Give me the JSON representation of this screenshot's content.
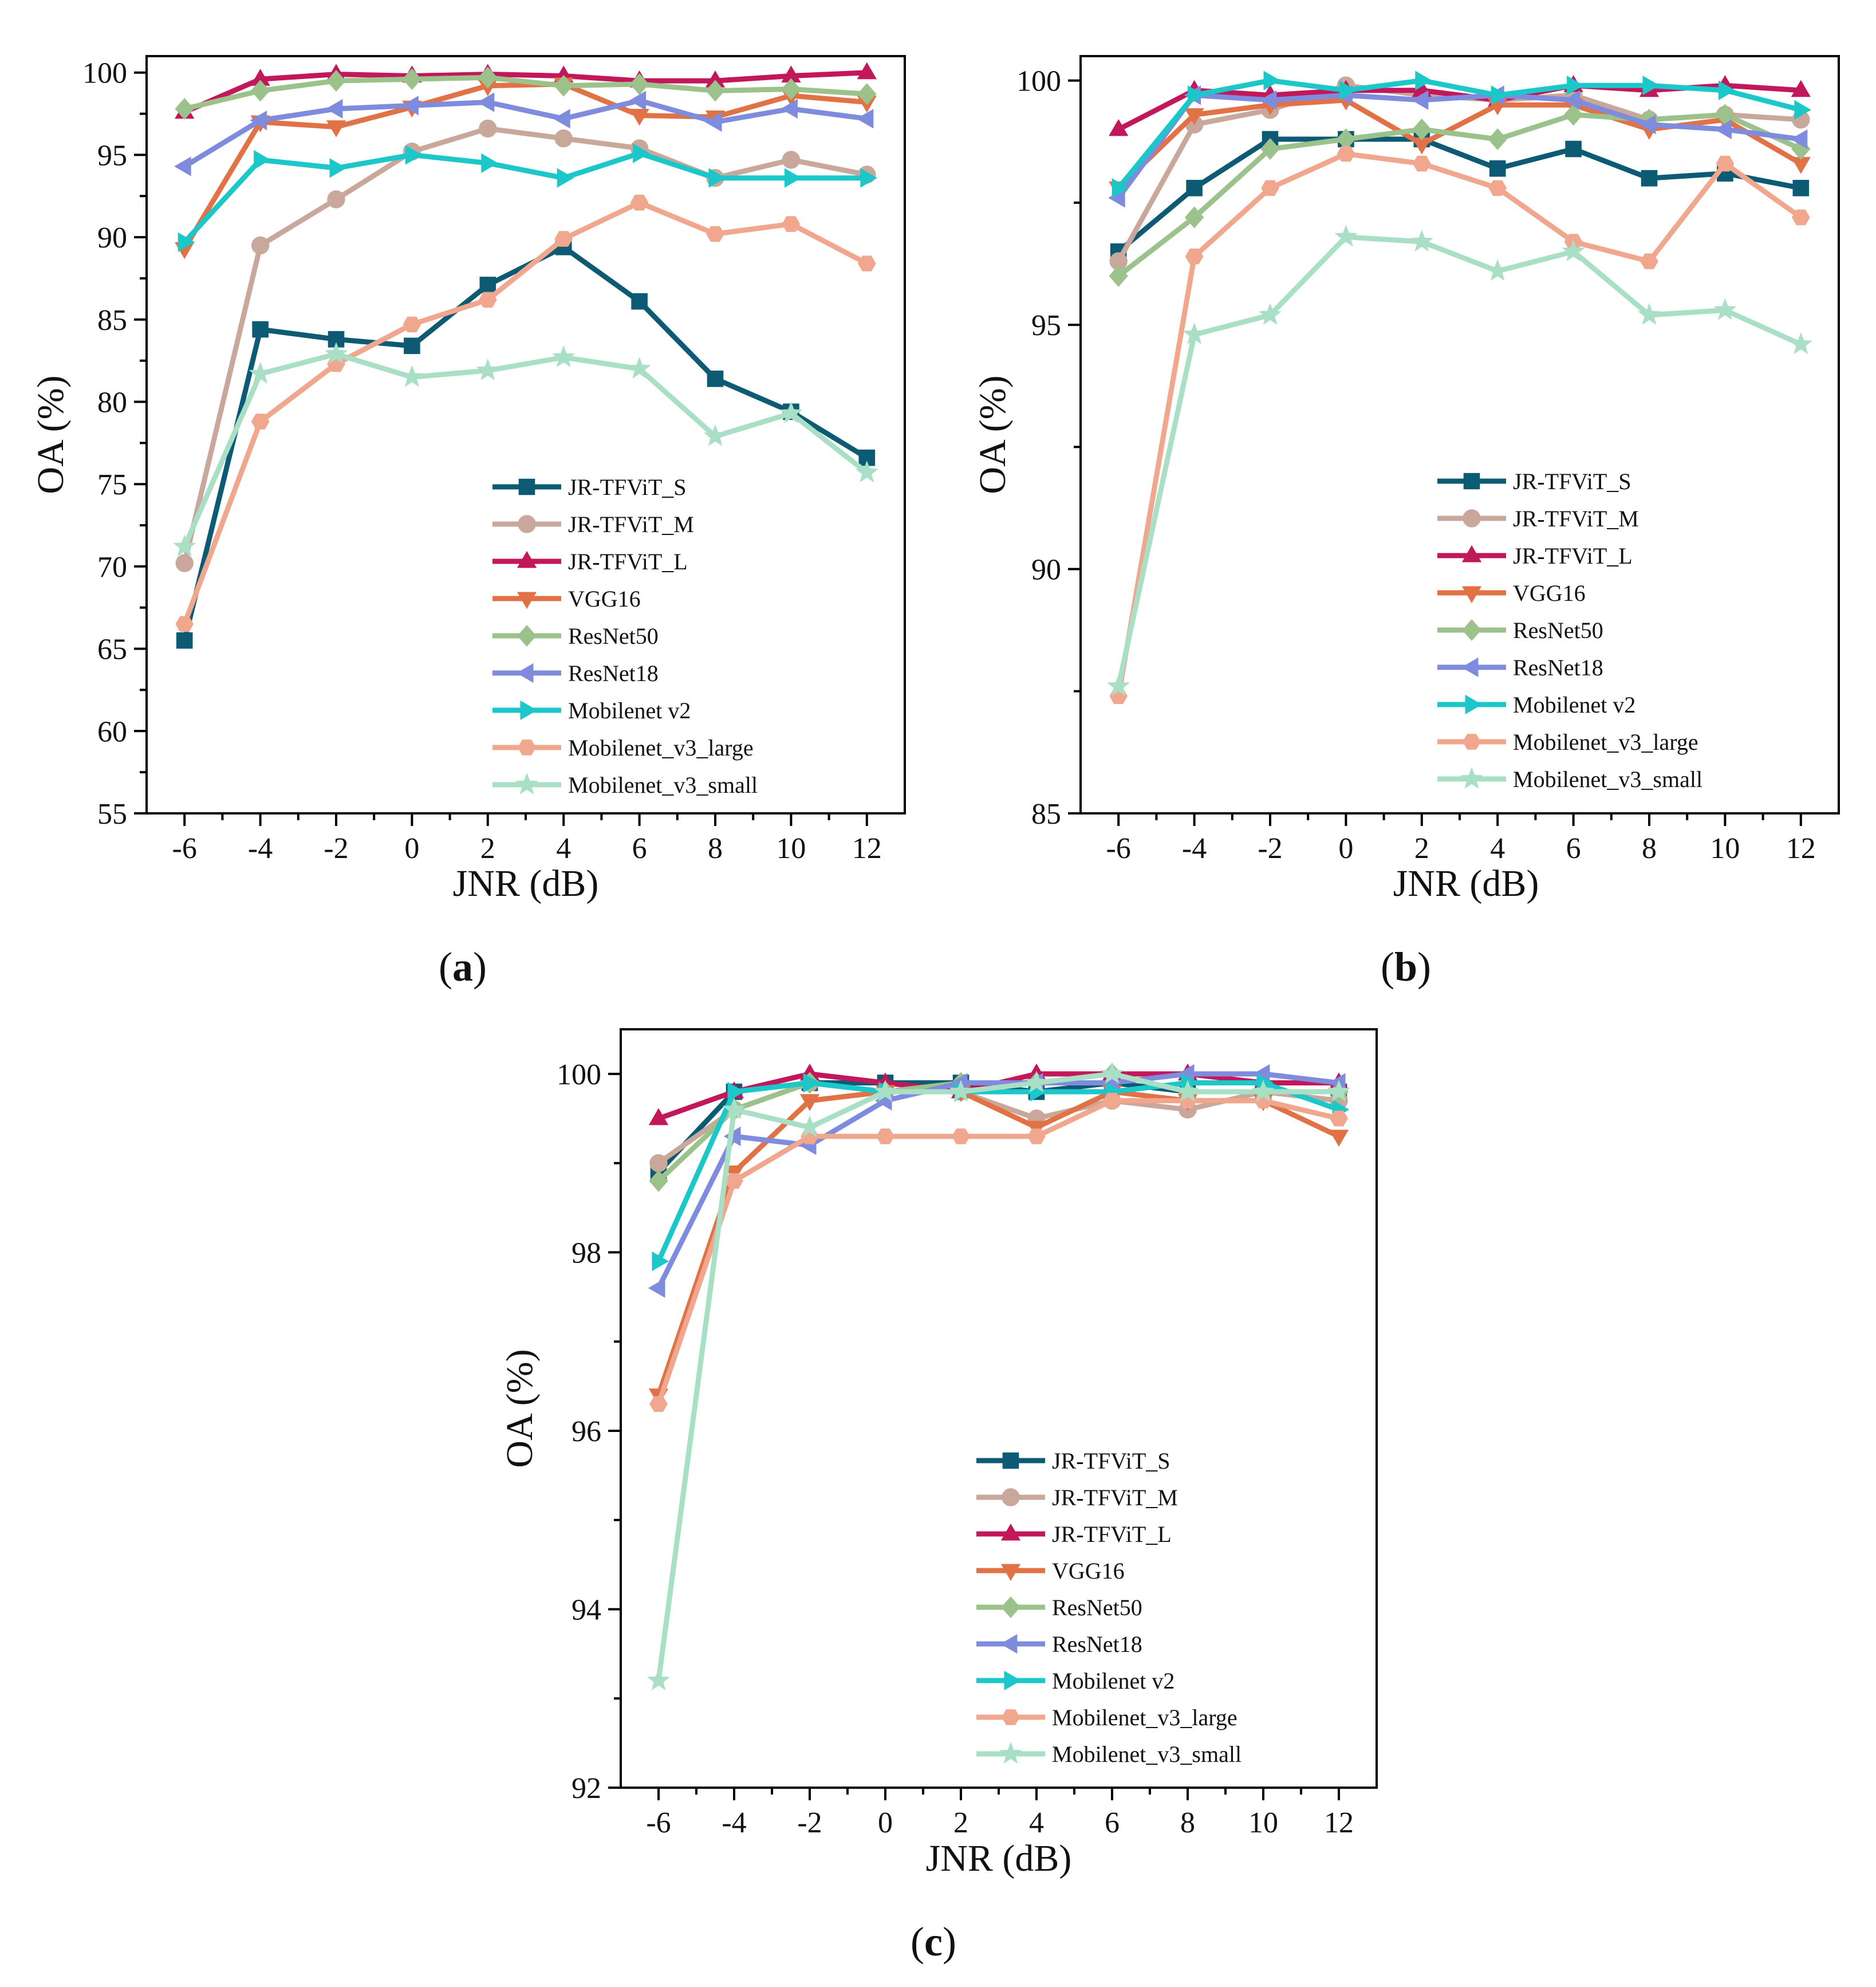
{
  "figure_colors": {
    "JR-TFViT_S": "#0d5a74",
    "JR-TFViT_M": "#c9a89b",
    "JR-TFViT_L": "#c2185b",
    "VGG16": "#e07246",
    "ResNet50": "#9cc28c",
    "ResNet18": "#7f8cde",
    "Mobilenet v2": "#1cc7c9",
    "Mobilenet_v3_large": "#f0a78d",
    "Mobilenet_v3_small": "#a8dfc5"
  },
  "chart_data": [
    {
      "id": "a",
      "type": "line",
      "caption_letter": "a",
      "xlabel": "JNR (dB)",
      "ylabel": "OA (%)",
      "x": [
        -6,
        -4,
        -2,
        0,
        2,
        4,
        6,
        8,
        10,
        12
      ],
      "x_tick_labels": [
        "-6",
        "-4",
        "-2",
        "0",
        "2",
        "4",
        "6",
        "8",
        "10",
        "12"
      ],
      "ylim": [
        55,
        101
      ],
      "y_ticks": [
        55,
        60,
        65,
        70,
        75,
        80,
        85,
        90,
        95,
        100
      ],
      "y_tick_labels": [
        "55",
        "60",
        "65",
        "70",
        "75",
        "80",
        "85",
        "90",
        "95",
        "100"
      ],
      "legend_position": "bottom-right",
      "series": [
        {
          "name": "JR-TFViT_S",
          "marker": "square",
          "values": [
            65.5,
            84.4,
            83.8,
            83.4,
            87.1,
            89.4,
            86.1,
            81.4,
            79.4,
            76.6
          ]
        },
        {
          "name": "JR-TFViT_M",
          "marker": "circle",
          "values": [
            70.2,
            89.5,
            92.3,
            95.2,
            96.6,
            96.0,
            95.4,
            93.6,
            94.7,
            93.8
          ]
        },
        {
          "name": "JR-TFViT_L",
          "marker": "triangle-up",
          "values": [
            97.6,
            99.6,
            99.9,
            99.8,
            99.9,
            99.8,
            99.5,
            99.5,
            99.8,
            100.0
          ]
        },
        {
          "name": "VGG16",
          "marker": "triangle-down",
          "values": [
            89.3,
            97.0,
            96.7,
            97.9,
            99.2,
            99.3,
            97.4,
            97.3,
            98.6,
            98.2
          ]
        },
        {
          "name": "ResNet50",
          "marker": "diamond",
          "values": [
            97.8,
            98.9,
            99.5,
            99.6,
            99.7,
            99.2,
            99.3,
            98.9,
            99.0,
            98.7
          ]
        },
        {
          "name": "ResNet18",
          "marker": "triangle-left",
          "values": [
            94.3,
            97.1,
            97.8,
            98.0,
            98.2,
            97.2,
            98.3,
            97.0,
            97.8,
            97.2
          ]
        },
        {
          "name": "Mobilenet v2",
          "marker": "triangle-right",
          "values": [
            89.7,
            94.7,
            94.2,
            95.0,
            94.5,
            93.6,
            95.1,
            93.6,
            93.6,
            93.6
          ]
        },
        {
          "name": "Mobilenet_v3_large",
          "marker": "hexagon",
          "values": [
            66.5,
            78.8,
            82.3,
            84.7,
            86.2,
            89.9,
            92.1,
            90.2,
            90.8,
            88.4
          ]
        },
        {
          "name": "Mobilenet_v3_small",
          "marker": "star",
          "values": [
            71.2,
            81.7,
            82.9,
            81.5,
            81.9,
            82.7,
            82.0,
            77.9,
            79.3,
            75.7
          ]
        }
      ]
    },
    {
      "id": "b",
      "type": "line",
      "caption_letter": "b",
      "xlabel": "JNR (dB)",
      "ylabel": "OA (%)",
      "x": [
        -6,
        -4,
        -2,
        0,
        2,
        4,
        6,
        8,
        10,
        12
      ],
      "x_tick_labels": [
        "-6",
        "-4",
        "-2",
        "0",
        "2",
        "4",
        "6",
        "8",
        "10",
        "12"
      ],
      "ylim": [
        85,
        100.5
      ],
      "y_ticks": [
        85,
        90,
        95,
        100
      ],
      "y_tick_labels": [
        "85",
        "90",
        "95",
        "100"
      ],
      "legend_position": "bottom-right",
      "series": [
        {
          "name": "JR-TFViT_S",
          "marker": "square",
          "values": [
            96.5,
            97.8,
            98.8,
            98.8,
            98.8,
            98.2,
            98.6,
            98.0,
            98.1,
            97.8
          ]
        },
        {
          "name": "JR-TFViT_M",
          "marker": "circle",
          "values": [
            96.3,
            99.1,
            99.4,
            99.9,
            99.7,
            99.6,
            99.7,
            99.2,
            99.3,
            99.2
          ]
        },
        {
          "name": "JR-TFViT_L",
          "marker": "triangle-up",
          "values": [
            99.0,
            99.8,
            99.7,
            99.8,
            99.8,
            99.6,
            99.9,
            99.8,
            99.9,
            99.8
          ]
        },
        {
          "name": "VGG16",
          "marker": "triangle-down",
          "values": [
            97.8,
            99.3,
            99.5,
            99.6,
            98.7,
            99.5,
            99.5,
            99.0,
            99.2,
            98.3
          ]
        },
        {
          "name": "ResNet50",
          "marker": "diamond",
          "values": [
            96.0,
            97.2,
            98.6,
            98.8,
            99.0,
            98.8,
            99.3,
            99.2,
            99.3,
            98.6
          ]
        },
        {
          "name": "ResNet18",
          "marker": "triangle-left",
          "values": [
            97.6,
            99.7,
            99.6,
            99.7,
            99.6,
            99.7,
            99.6,
            99.1,
            99.0,
            98.8
          ]
        },
        {
          "name": "Mobilenet v2",
          "marker": "triangle-right",
          "values": [
            97.8,
            99.7,
            100.0,
            99.8,
            100.0,
            99.7,
            99.9,
            99.9,
            99.8,
            99.4
          ]
        },
        {
          "name": "Mobilenet_v3_large",
          "marker": "hexagon",
          "values": [
            87.4,
            96.4,
            97.8,
            98.5,
            98.3,
            97.8,
            96.7,
            96.3,
            98.3,
            97.2
          ]
        },
        {
          "name": "Mobilenet_v3_small",
          "marker": "star",
          "values": [
            87.6,
            94.8,
            95.2,
            96.8,
            96.7,
            96.1,
            96.5,
            95.2,
            95.3,
            94.6
          ]
        }
      ]
    },
    {
      "id": "c",
      "type": "line",
      "caption_letter": "c",
      "xlabel": "JNR (dB)",
      "ylabel": "OA (%)",
      "x": [
        -6,
        -4,
        -2,
        0,
        2,
        4,
        6,
        8,
        10,
        12
      ],
      "x_tick_labels": [
        "-6",
        "-4",
        "-2",
        "0",
        "2",
        "4",
        "6",
        "8",
        "10",
        "12"
      ],
      "ylim": [
        92,
        100.5
      ],
      "y_ticks": [
        92,
        94,
        96,
        98,
        100
      ],
      "y_tick_labels": [
        "92",
        "94",
        "96",
        "98",
        "100"
      ],
      "legend_position": "bottom-right",
      "series": [
        {
          "name": "JR-TFViT_S",
          "marker": "square",
          "values": [
            98.9,
            99.8,
            99.9,
            99.9,
            99.9,
            99.8,
            99.9,
            99.8,
            99.8,
            99.8
          ]
        },
        {
          "name": "JR-TFViT_M",
          "marker": "circle",
          "values": [
            99.0,
            99.6,
            99.9,
            99.8,
            99.8,
            99.5,
            99.7,
            99.6,
            99.8,
            99.7
          ]
        },
        {
          "name": "JR-TFViT_L",
          "marker": "triangle-up",
          "values": [
            99.5,
            99.8,
            100.0,
            99.9,
            99.8,
            100.0,
            100.0,
            100.0,
            99.9,
            99.9
          ]
        },
        {
          "name": "VGG16",
          "marker": "triangle-down",
          "values": [
            96.4,
            98.9,
            99.7,
            99.8,
            99.8,
            99.4,
            99.8,
            99.7,
            99.7,
            99.3
          ]
        },
        {
          "name": "ResNet50",
          "marker": "diamond",
          "values": [
            98.8,
            99.6,
            99.9,
            99.8,
            99.9,
            99.9,
            100.0,
            99.8,
            99.8,
            99.8
          ]
        },
        {
          "name": "ResNet18",
          "marker": "triangle-left",
          "values": [
            97.6,
            99.3,
            99.2,
            99.7,
            99.9,
            99.9,
            99.9,
            100.0,
            100.0,
            99.9
          ]
        },
        {
          "name": "Mobilenet v2",
          "marker": "triangle-right",
          "values": [
            97.9,
            99.8,
            99.9,
            99.8,
            99.8,
            99.8,
            99.8,
            99.9,
            99.9,
            99.6
          ]
        },
        {
          "name": "Mobilenet_v3_large",
          "marker": "hexagon",
          "values": [
            96.3,
            98.8,
            99.3,
            99.3,
            99.3,
            99.3,
            99.7,
            99.7,
            99.7,
            99.5
          ]
        },
        {
          "name": "Mobilenet_v3_small",
          "marker": "star",
          "values": [
            93.2,
            99.6,
            99.4,
            99.8,
            99.8,
            99.9,
            100.0,
            99.8,
            99.8,
            99.8
          ]
        }
      ]
    }
  ]
}
